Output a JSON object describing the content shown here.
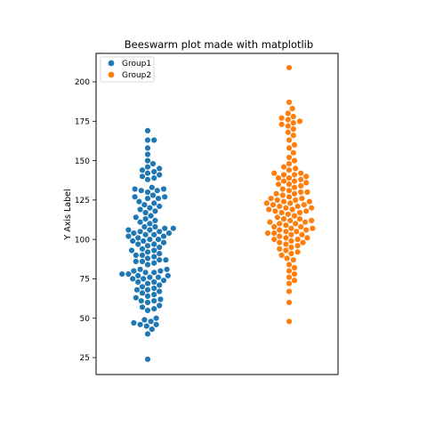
{
  "chart_data": {
    "type": "scatter",
    "title": "Beeswarm plot made with matplotlib",
    "xlabel": "",
    "ylabel": "Y Axis Label",
    "ylim": [
      15,
      220
    ],
    "yticks": [
      25,
      50,
      75,
      100,
      125,
      150,
      175,
      200
    ],
    "grid": false,
    "legend_position": "top-left",
    "series": [
      {
        "name": "Group1",
        "color": "#1f77b4",
        "values": [
          24,
          40,
          43,
          45,
          46,
          46,
          47,
          48,
          49,
          50,
          55,
          56,
          57,
          58,
          60,
          61,
          61,
          62,
          63,
          64,
          65,
          66,
          67,
          68,
          68,
          69,
          70,
          71,
          72,
          73,
          73,
          74,
          75,
          75,
          76,
          76,
          77,
          77,
          78,
          78,
          79,
          79,
          80,
          80,
          81,
          81,
          84,
          85,
          86,
          86,
          87,
          87,
          88,
          89,
          90,
          90,
          91,
          92,
          93,
          93,
          94,
          95,
          96,
          97,
          97,
          98,
          99,
          99,
          100,
          100,
          101,
          102,
          102,
          103,
          103,
          104,
          104,
          105,
          105,
          106,
          106,
          107,
          107,
          108,
          108,
          110,
          111,
          112,
          113,
          114,
          115,
          117,
          118,
          119,
          120,
          121,
          122,
          123,
          124,
          126,
          126,
          127,
          127,
          128,
          130,
          131,
          131,
          132,
          132,
          133,
          138,
          139,
          140,
          141,
          142,
          143,
          144,
          145,
          146,
          148,
          150,
          154,
          158,
          163,
          163,
          169
        ]
      },
      {
        "name": "Group2",
        "color": "#ff7f0e",
        "values": [
          48,
          60,
          67,
          72,
          74,
          76,
          78,
          80,
          82,
          84,
          87,
          88,
          90,
          91,
          92,
          93,
          94,
          95,
          96,
          97,
          98,
          98,
          99,
          100,
          100,
          101,
          101,
          102,
          103,
          103,
          104,
          104,
          105,
          105,
          106,
          106,
          107,
          107,
          108,
          108,
          109,
          110,
          110,
          111,
          111,
          112,
          112,
          113,
          113,
          114,
          115,
          116,
          117,
          117,
          118,
          118,
          119,
          119,
          120,
          120,
          121,
          121,
          122,
          122,
          123,
          123,
          124,
          124,
          125,
          125,
          126,
          126,
          127,
          128,
          129,
          129,
          130,
          130,
          131,
          132,
          133,
          134,
          135,
          135,
          136,
          137,
          137,
          138,
          139,
          139,
          140,
          141,
          141,
          142,
          142,
          144,
          145,
          146,
          148,
          150,
          152,
          155,
          158,
          160,
          163,
          166,
          168,
          170,
          172,
          173,
          174,
          175,
          176,
          177,
          178,
          180,
          183,
          187,
          209
        ]
      }
    ]
  }
}
